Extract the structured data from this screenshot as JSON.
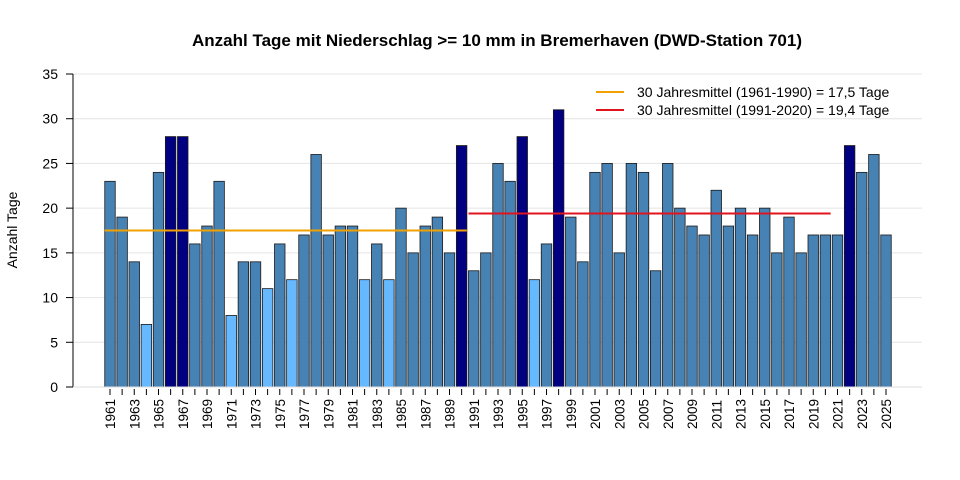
{
  "chart_data": {
    "type": "bar",
    "title": "Anzahl Tage mit Niederschlag >= 10 mm in Bremerhaven (DWD-Station 701)",
    "xlabel": "",
    "ylabel": "Anzahl Tage",
    "ylim": [
      0,
      35
    ],
    "yticks": [
      0,
      5,
      10,
      15,
      20,
      25,
      30,
      35
    ],
    "grid": true,
    "legend_position": "top-right",
    "categories": [
      1961,
      1962,
      1963,
      1964,
      1965,
      1966,
      1967,
      1968,
      1969,
      1970,
      1971,
      1972,
      1973,
      1974,
      1975,
      1976,
      1977,
      1978,
      1979,
      1980,
      1981,
      1982,
      1983,
      1984,
      1985,
      1986,
      1987,
      1988,
      1989,
      1990,
      1991,
      1992,
      1993,
      1994,
      1995,
      1996,
      1997,
      1998,
      1999,
      2000,
      2001,
      2002,
      2003,
      2004,
      2005,
      2006,
      2007,
      2008,
      2009,
      2010,
      2011,
      2012,
      2013,
      2014,
      2015,
      2016,
      2017,
      2018,
      2019,
      2020,
      2021,
      2022,
      2023,
      2024,
      2025
    ],
    "values": [
      23,
      19,
      14,
      7,
      24,
      28,
      28,
      16,
      18,
      23,
      8,
      14,
      14,
      11,
      16,
      12,
      17,
      26,
      17,
      18,
      18,
      12,
      16,
      12,
      20,
      15,
      18,
      19,
      15,
      27,
      13,
      15,
      25,
      23,
      28,
      12,
      16,
      31,
      19,
      14,
      24,
      25,
      15,
      25,
      24,
      13,
      25,
      20,
      18,
      17,
      22,
      18,
      20,
      17,
      20,
      15,
      19,
      15,
      17,
      17,
      17,
      27,
      24,
      26,
      17
    ],
    "colors": {
      "low": "#66b8ff",
      "normal": "#4682b4",
      "high": "#000080",
      "bar_border": "#1a1a1a"
    },
    "mean_lines": [
      {
        "label": "30 Jahresmittel (1961-1990) = 17,5 Tage",
        "value": 17.5,
        "from": 1961,
        "to": 1990,
        "color": "#f0a000"
      },
      {
        "label": "30 Jahresmittel (1991-2020) = 19,4 Tage",
        "value": 19.4,
        "from": 1991,
        "to": 2020,
        "color": "#e0141e"
      }
    ]
  }
}
